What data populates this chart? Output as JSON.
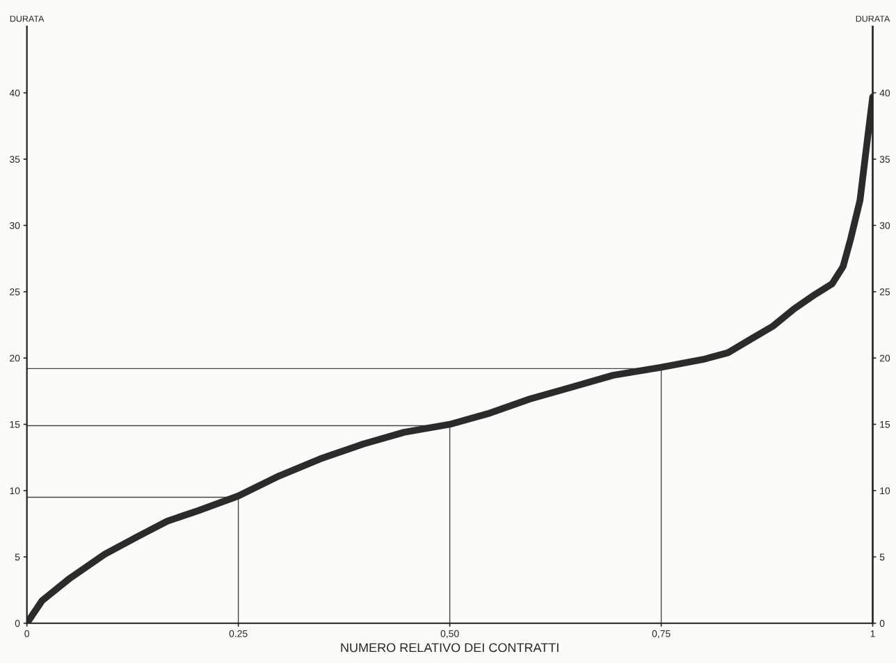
{
  "chart_data": {
    "type": "line",
    "xlabel": "NUMERO RELATIVO DEI CONTRATTI",
    "ylabel": "DURATA",
    "y2label": "DURATA",
    "x": [
      0,
      0.018,
      0.051,
      0.092,
      0.133,
      0.166,
      0.203,
      0.25,
      0.298,
      0.347,
      0.397,
      0.446,
      0.5,
      0.545,
      0.594,
      0.644,
      0.693,
      0.75,
      0.8,
      0.829,
      0.858,
      0.882,
      0.907,
      0.932,
      0.952,
      0.965,
      0.974,
      0.985,
      0.993,
      1.0
    ],
    "series": [
      {
        "color": "#2b2b2b",
        "values": [
          0,
          1.7,
          3.4,
          5.2,
          6.6,
          7.7,
          8.5,
          9.6,
          11.1,
          12.4,
          13.5,
          14.4,
          15.0,
          15.8,
          16.9,
          17.8,
          18.7,
          19.3,
          19.9,
          20.4,
          21.5,
          22.4,
          23.7,
          24.8,
          25.6,
          26.9,
          29.0,
          31.9,
          36.1,
          39.7
        ]
      }
    ],
    "xlim": [
      0,
      1
    ],
    "xticks": [
      0,
      {
        "value": 0.25,
        "label": "0.25"
      },
      {
        "value": 0.5,
        "label": "0,50"
      },
      {
        "value": 0.75,
        "label": "0,75"
      },
      1
    ],
    "ylim": [
      0,
      45
    ],
    "yticks": [
      0,
      5,
      10,
      15,
      20,
      25,
      30,
      35,
      40
    ],
    "y2lim": [
      0,
      45
    ],
    "y2ticks": [
      0,
      5,
      10,
      15,
      20,
      25,
      30,
      35,
      40
    ],
    "ref_lines": [
      {
        "axis": "y",
        "value": 9.5
      },
      {
        "axis": "y",
        "value": 14.9
      },
      {
        "axis": "y",
        "value": 19.2
      },
      {
        "axis": "x",
        "value": 0.25
      },
      {
        "axis": "x",
        "value": 0.5
      },
      {
        "axis": "x",
        "value": 0.75
      }
    ],
    "grid": false,
    "legend": false,
    "marker": "none",
    "line_style": "solid"
  }
}
